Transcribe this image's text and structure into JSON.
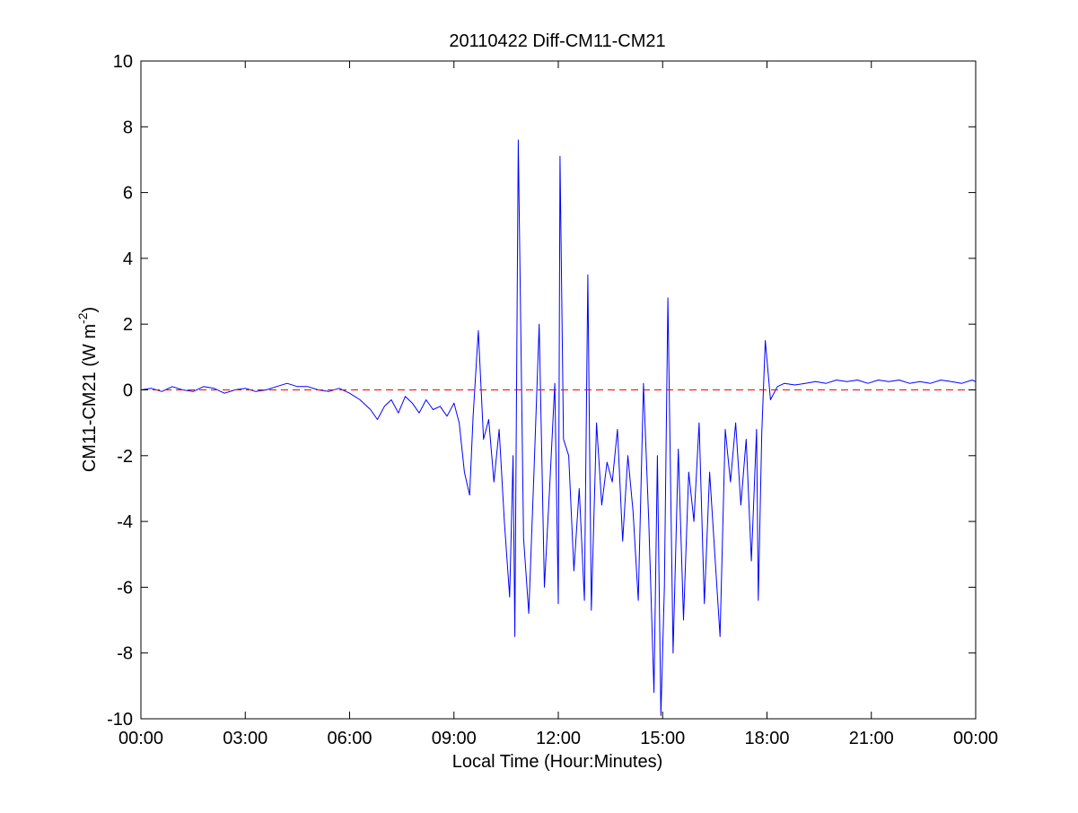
{
  "chart_data": {
    "type": "line",
    "title": "20110422 Diff-CM11-CM21",
    "xlabel": "Local Time (Hour:Minutes)",
    "ylabel_main": "CM11-CM21 (W m",
    "ylabel_sup": "-2",
    "ylabel_close": ")",
    "x_unit": "hours",
    "xlim": [
      0,
      24
    ],
    "ylim": [
      -10,
      10
    ],
    "xticks": [
      0,
      3,
      6,
      9,
      12,
      15,
      18,
      21,
      24
    ],
    "xtick_labels": [
      "00:00",
      "03:00",
      "06:00",
      "09:00",
      "12:00",
      "15:00",
      "18:00",
      "21:00",
      "00:00"
    ],
    "yticks": [
      10,
      8,
      6,
      4,
      2,
      0,
      -2,
      -4,
      -6,
      -8,
      -10
    ],
    "ytick_labels": [
      "10",
      "8",
      "6",
      "4",
      "2",
      "0",
      "-2",
      "-4",
      "-6",
      "-8",
      "-10"
    ],
    "grid": false,
    "legend": "none",
    "reference_line": {
      "y": 0,
      "style": "dashed",
      "color": "#ff0000"
    },
    "series": [
      {
        "color": "#0000ff",
        "x": [
          0.0,
          0.3,
          0.6,
          0.9,
          1.2,
          1.5,
          1.8,
          2.1,
          2.4,
          2.7,
          3.0,
          3.3,
          3.6,
          3.9,
          4.2,
          4.5,
          4.8,
          5.1,
          5.4,
          5.7,
          6.0,
          6.3,
          6.6,
          6.8,
          7.0,
          7.2,
          7.4,
          7.6,
          7.8,
          8.0,
          8.2,
          8.4,
          8.6,
          8.8,
          9.0,
          9.15,
          9.3,
          9.45,
          9.55,
          9.7,
          9.85,
          10.0,
          10.15,
          10.3,
          10.45,
          10.6,
          10.7,
          10.75,
          10.85,
          11.0,
          11.15,
          11.3,
          11.45,
          11.6,
          11.75,
          11.9,
          12.0,
          12.05,
          12.15,
          12.3,
          12.45,
          12.6,
          12.75,
          12.85,
          12.95,
          13.1,
          13.25,
          13.4,
          13.55,
          13.7,
          13.85,
          14.0,
          14.15,
          14.3,
          14.45,
          14.6,
          14.75,
          14.85,
          14.95,
          15.05,
          15.15,
          15.3,
          15.45,
          15.6,
          15.75,
          15.9,
          16.05,
          16.2,
          16.35,
          16.5,
          16.65,
          16.8,
          16.95,
          17.1,
          17.25,
          17.4,
          17.55,
          17.7,
          17.75,
          17.85,
          17.95,
          18.1,
          18.3,
          18.5,
          18.8,
          19.1,
          19.4,
          19.7,
          20.0,
          20.3,
          20.6,
          20.9,
          21.2,
          21.5,
          21.8,
          22.1,
          22.4,
          22.7,
          23.0,
          23.3,
          23.6,
          23.9,
          24.0
        ],
        "y": [
          0.0,
          0.05,
          -0.05,
          0.1,
          0.0,
          -0.05,
          0.1,
          0.05,
          -0.1,
          0.0,
          0.05,
          -0.05,
          0.0,
          0.1,
          0.2,
          0.1,
          0.1,
          0.0,
          -0.05,
          0.05,
          -0.1,
          -0.3,
          -0.6,
          -0.9,
          -0.5,
          -0.3,
          -0.7,
          -0.2,
          -0.4,
          -0.7,
          -0.3,
          -0.6,
          -0.5,
          -0.8,
          -0.4,
          -1.0,
          -2.5,
          -3.2,
          -0.8,
          1.8,
          -1.5,
          -0.9,
          -2.8,
          -1.2,
          -4.0,
          -6.3,
          -2.0,
          -7.5,
          7.6,
          -4.5,
          -6.8,
          -2.5,
          2.0,
          -6.0,
          -3.0,
          0.2,
          -6.5,
          7.1,
          -1.5,
          -2.0,
          -5.5,
          -3.0,
          -6.4,
          3.5,
          -6.7,
          -1.0,
          -3.5,
          -2.2,
          -2.8,
          -1.2,
          -4.6,
          -2.0,
          -3.7,
          -6.4,
          0.2,
          -4.0,
          -9.2,
          -2.0,
          -9.9,
          -6.0,
          2.8,
          -8.0,
          -1.8,
          -7.0,
          -2.5,
          -4.0,
          -1.0,
          -6.5,
          -2.5,
          -5.0,
          -7.5,
          -1.2,
          -2.8,
          -1.0,
          -3.5,
          -1.5,
          -5.2,
          -1.2,
          -6.4,
          -1.3,
          1.5,
          -0.3,
          0.1,
          0.2,
          0.15,
          0.2,
          0.25,
          0.2,
          0.3,
          0.25,
          0.3,
          0.2,
          0.3,
          0.25,
          0.3,
          0.2,
          0.25,
          0.2,
          0.3,
          0.25,
          0.2,
          0.3,
          0.25
        ]
      }
    ]
  }
}
